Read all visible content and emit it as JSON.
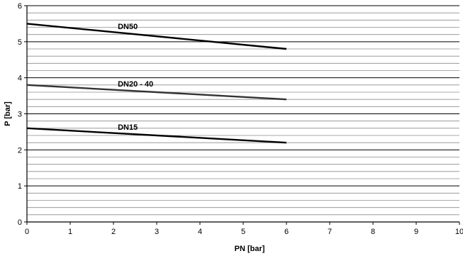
{
  "chart_data": {
    "type": "line",
    "xlabel": "PN [bar]",
    "ylabel": "P [bar]",
    "xlim": [
      0,
      10
    ],
    "ylim": [
      0,
      6
    ],
    "x_ticks": [
      "0",
      "1",
      "2",
      "3",
      "4",
      "5",
      "6",
      "7",
      "8",
      "9",
      "10"
    ],
    "y_ticks": [
      "0",
      "1",
      "2",
      "3",
      "4",
      "5",
      "6"
    ],
    "grid": {
      "major_y": 1,
      "minor_y": 0.2,
      "vertical": false
    },
    "legend": "none",
    "series": [
      {
        "name": "DN50",
        "color": "#000000",
        "x": [
          0,
          6
        ],
        "y": [
          5.5,
          4.8
        ]
      },
      {
        "name": "DN20 - 40",
        "color": "#333333",
        "x": [
          0,
          6
        ],
        "y": [
          3.8,
          3.4
        ]
      },
      {
        "name": "DN15",
        "color": "#000000",
        "x": [
          0,
          6
        ],
        "y": [
          2.6,
          2.2
        ]
      }
    ]
  }
}
